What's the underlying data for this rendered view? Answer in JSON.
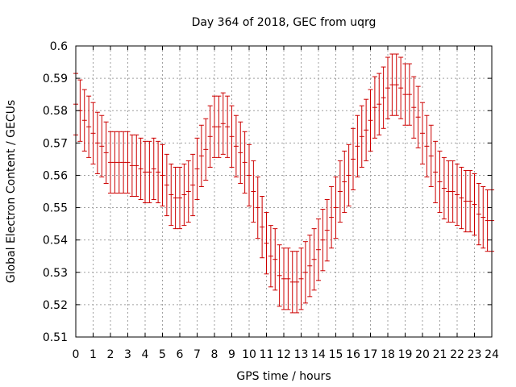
{
  "chart_data": {
    "type": "scatter",
    "title": "Day 364 of 2018, GEC from uqrg",
    "xlabel": "GPS time / hours",
    "ylabel": "Global Electron Content / GECUs",
    "xlim": [
      0,
      24
    ],
    "ylim": [
      0.51,
      0.6
    ],
    "xticks": [
      "0",
      "1",
      "2",
      "3",
      "4",
      "5",
      "6",
      "7",
      "8",
      "9",
      "10",
      "11",
      "12",
      "13",
      "14",
      "15",
      "16",
      "17",
      "18",
      "19",
      "20",
      "21",
      "22",
      "23",
      "24"
    ],
    "yticks": [
      "0.51",
      "0.52",
      "0.53",
      "0.54",
      "0.55",
      "0.56",
      "0.57",
      "0.58",
      "0.59",
      "0.6"
    ],
    "grid": true,
    "series_color": "#cc0000",
    "series": [
      {
        "name": "GEC",
        "error": 0.0095,
        "x": [
          0.0,
          0.25,
          0.5,
          0.75,
          1.0,
          1.25,
          1.5,
          1.75,
          2.0,
          2.25,
          2.5,
          2.75,
          3.0,
          3.25,
          3.5,
          3.75,
          4.0,
          4.25,
          4.5,
          4.75,
          5.0,
          5.25,
          5.5,
          5.75,
          6.0,
          6.25,
          6.5,
          6.75,
          7.0,
          7.25,
          7.5,
          7.75,
          8.0,
          8.25,
          8.5,
          8.75,
          9.0,
          9.25,
          9.5,
          9.75,
          10.0,
          10.25,
          10.5,
          10.75,
          11.0,
          11.25,
          11.5,
          11.75,
          12.0,
          12.25,
          12.5,
          12.75,
          13.0,
          13.25,
          13.5,
          13.75,
          14.0,
          14.25,
          14.5,
          14.75,
          15.0,
          15.25,
          15.5,
          15.75,
          16.0,
          16.25,
          16.5,
          16.75,
          17.0,
          17.25,
          17.5,
          17.75,
          18.0,
          18.25,
          18.5,
          18.75,
          19.0,
          19.25,
          19.5,
          19.75,
          20.0,
          20.25,
          20.5,
          20.75,
          21.0,
          21.25,
          21.5,
          21.75,
          22.0,
          22.25,
          22.5,
          22.75,
          23.0,
          23.25,
          23.5,
          23.75,
          24.0
        ],
        "y": [
          0.582,
          0.58,
          0.577,
          0.575,
          0.573,
          0.57,
          0.569,
          0.567,
          0.564,
          0.564,
          0.564,
          0.564,
          0.564,
          0.563,
          0.563,
          0.562,
          0.561,
          0.561,
          0.562,
          0.561,
          0.56,
          0.557,
          0.554,
          0.553,
          0.553,
          0.554,
          0.555,
          0.557,
          0.562,
          0.566,
          0.568,
          0.572,
          0.575,
          0.575,
          0.576,
          0.575,
          0.572,
          0.569,
          0.567,
          0.564,
          0.56,
          0.555,
          0.55,
          0.544,
          0.539,
          0.535,
          0.534,
          0.529,
          0.528,
          0.528,
          0.527,
          0.527,
          0.528,
          0.53,
          0.532,
          0.534,
          0.537,
          0.54,
          0.543,
          0.547,
          0.55,
          0.555,
          0.558,
          0.56,
          0.565,
          0.569,
          0.572,
          0.574,
          0.577,
          0.581,
          0.582,
          0.584,
          0.587,
          0.588,
          0.588,
          0.587,
          0.585,
          0.585,
          0.581,
          0.578,
          0.573,
          0.569,
          0.566,
          0.561,
          0.558,
          0.556,
          0.555,
          0.555,
          0.554,
          0.553,
          0.552,
          0.552,
          0.551,
          0.548,
          0.547,
          0.546,
          0.546
        ]
      }
    ]
  }
}
